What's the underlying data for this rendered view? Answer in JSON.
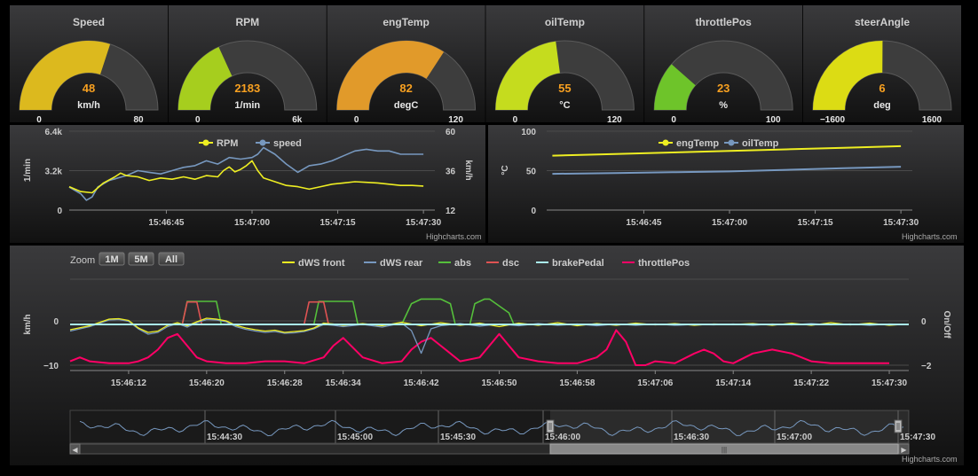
{
  "credit": "Highcharts.com",
  "colors": {
    "yellow": "#eeee22",
    "blue": "#7798bf",
    "green": "#55bf3b",
    "red": "#df5353",
    "light_cyan": "#aaeeee",
    "pink": "#ff0066",
    "gauge_bg": "#3a3a3a",
    "value_text": "#f7a020"
  },
  "gauges": [
    {
      "title": "Speed",
      "value_label": "48",
      "unit": "km/h",
      "min": 0,
      "max": 80,
      "value": 48,
      "min_label": "0",
      "max_label": "80",
      "color": "#dcb91e"
    },
    {
      "title": "RPM",
      "value_label": "2183",
      "unit": "1/min",
      "min": 0,
      "max": 6000,
      "value": 2183,
      "min_label": "0",
      "max_label": "6k",
      "color": "#a6ce1e"
    },
    {
      "title": "engTemp",
      "value_label": "82",
      "unit": "degC",
      "min": 0,
      "max": 120,
      "value": 82,
      "min_label": "0",
      "max_label": "120",
      "color": "#e19a2a"
    },
    {
      "title": "oilTemp",
      "value_label": "55",
      "unit": "°C",
      "min": 0,
      "max": 120,
      "value": 55,
      "min_label": "0",
      "max_label": "120",
      "color": "#c5dc1e"
    },
    {
      "title": "throttlePos",
      "value_label": "23",
      "unit": "%",
      "min": 0,
      "max": 100,
      "value": 23,
      "min_label": "0",
      "max_label": "100",
      "color": "#6ec42a"
    },
    {
      "title": "steerAngle",
      "value_label": "6",
      "unit": "deg",
      "min": -1600,
      "max": 1600,
      "value": 6,
      "min_label": "−1600",
      "max_label": "1600",
      "color": "#dcdc14"
    }
  ],
  "chart_data": [
    {
      "type": "line",
      "x_ticks": [
        "15:46:45",
        "15:47:00",
        "15:47:15",
        "15:47:30"
      ],
      "x_tick_seconds": [
        45,
        60,
        75,
        90
      ],
      "xlim": [
        28,
        92
      ],
      "y_left": {
        "label": "1/min",
        "ticks": [
          "0",
          "3.2k",
          "6.4k"
        ],
        "ylim": [
          0,
          6400
        ]
      },
      "y_right": {
        "label": "km/h",
        "ticks": [
          "12",
          "36",
          "60"
        ],
        "ylim": [
          12,
          60
        ]
      },
      "legend": [
        "RPM",
        "speed"
      ],
      "series": [
        {
          "name": "RPM",
          "axis": "left",
          "color": "#eeee22",
          "x": [
            28,
            30,
            32,
            34,
            36,
            37,
            38,
            40,
            42,
            44,
            46,
            48,
            50,
            52,
            54,
            55,
            56,
            57,
            58,
            59,
            60,
            61,
            62,
            64,
            66,
            68,
            70,
            72,
            74,
            76,
            78,
            80,
            82,
            84,
            86,
            88,
            90
          ],
          "y": [
            1900,
            1500,
            1400,
            2200,
            2700,
            3000,
            2800,
            2700,
            2400,
            2600,
            2500,
            2700,
            2500,
            2800,
            2700,
            3200,
            3500,
            3100,
            3300,
            3600,
            4000,
            3200,
            2600,
            2300,
            2000,
            1900,
            1700,
            1900,
            2100,
            2200,
            2300,
            2250,
            2200,
            2100,
            2000,
            2000,
            1950
          ]
        },
        {
          "name": "speed",
          "axis": "right",
          "color": "#7798bf",
          "x": [
            28,
            29,
            30,
            31,
            32,
            33,
            34,
            35,
            36,
            37,
            38,
            40,
            42,
            44,
            46,
            48,
            50,
            52,
            54,
            56,
            58,
            60,
            61,
            62,
            64,
            66,
            68,
            70,
            72,
            74,
            76,
            78,
            80,
            82,
            84,
            86,
            88,
            90
          ],
          "y": [
            26,
            24,
            22,
            18,
            20,
            26,
            28,
            30,
            31,
            32,
            33,
            36,
            35,
            34,
            36,
            38,
            39,
            42,
            40,
            44,
            43,
            44,
            46,
            50,
            46,
            40,
            35,
            39,
            40,
            42,
            45,
            48,
            49,
            48,
            48,
            46,
            46,
            46
          ]
        }
      ]
    },
    {
      "type": "line",
      "x_ticks": [
        "15:46:45",
        "15:47:00",
        "15:47:15",
        "15:47:30"
      ],
      "x_tick_seconds": [
        45,
        60,
        75,
        90
      ],
      "xlim": [
        28,
        92
      ],
      "y_left": {
        "label": "°C",
        "ticks": [
          "0",
          "50",
          "100"
        ],
        "ylim": [
          0,
          100
        ]
      },
      "legend": [
        "engTemp",
        "oilTemp"
      ],
      "series": [
        {
          "name": "engTemp",
          "color": "#eeee22",
          "x": [
            29,
            40,
            50,
            60,
            70,
            80,
            90
          ],
          "y": [
            69,
            71,
            73,
            75,
            77,
            79,
            81
          ]
        },
        {
          "name": "oilTemp",
          "color": "#7798bf",
          "x": [
            29,
            40,
            50,
            60,
            70,
            80,
            90
          ],
          "y": [
            46,
            47,
            48,
            49,
            51,
            53,
            55
          ]
        }
      ]
    },
    {
      "type": "line",
      "zoom": {
        "label": "Zoom",
        "buttons": [
          "1M",
          "5M",
          "All"
        ]
      },
      "x_ticks": [
        "15:46:12",
        "15:46:20",
        "15:46:28",
        "15:46:34",
        "15:46:42",
        "15:46:50",
        "15:46:58",
        "15:47:06",
        "15:47:14",
        "15:47:22",
        "15:47:30"
      ],
      "x_tick_seconds": [
        12,
        20,
        28,
        34,
        42,
        50,
        58,
        66,
        74,
        82,
        90
      ],
      "xlim": [
        6,
        92
      ],
      "y_left": {
        "label": "km/h",
        "ticks": [
          "−10",
          "0"
        ]
      },
      "y_right": {
        "label": "On/Off",
        "ticks": [
          "−2",
          "0"
        ]
      },
      "legend": [
        "dWS front",
        "dWS rear",
        "abs",
        "dsc",
        "brakePedal",
        "throttlePos"
      ],
      "series": [
        {
          "name": "dWS front",
          "color": "#eeee22",
          "x": [
            6,
            8,
            10,
            11,
            12,
            13,
            14,
            15,
            16,
            17,
            18,
            19,
            20,
            21,
            22,
            23,
            24,
            25,
            26,
            27,
            28,
            29,
            30,
            31,
            32,
            33,
            34,
            36,
            38,
            40,
            42,
            44,
            46,
            48,
            50,
            52,
            54,
            56,
            58,
            60,
            62,
            64,
            66,
            68,
            70,
            72,
            74,
            76,
            78,
            80,
            82,
            84,
            86,
            88,
            90,
            92
          ],
          "y": [
            -1.2,
            -0.3,
            1.2,
            1.3,
            0.9,
            -0.8,
            -1.8,
            -1.5,
            -0.2,
            0.4,
            -0.3,
            0.6,
            1.4,
            1.2,
            0.8,
            -0.2,
            -0.8,
            -1.2,
            -1.5,
            -1.3,
            -1.8,
            -1.6,
            -1.4,
            -0.8,
            0.3,
            0.1,
            -0.2,
            0.2,
            -0.3,
            0.5,
            -0.3,
            0.4,
            -0.2,
            0.3,
            -0.5,
            0.3,
            -0.2,
            0.4,
            -0.3,
            0.2,
            -0.2,
            0.3,
            -0.1,
            0.2,
            -0.2,
            0.1,
            0.0,
            0.2,
            -0.2,
            0.3,
            -0.2,
            0.4,
            -0.1,
            0.3,
            -0.2,
            0.1
          ]
        },
        {
          "name": "dWS rear",
          "color": "#7798bf",
          "x": [
            6,
            8,
            10,
            11,
            12,
            13,
            14,
            15,
            16,
            17,
            18,
            19,
            20,
            21,
            22,
            23,
            24,
            25,
            26,
            27,
            28,
            29,
            30,
            31,
            32,
            33,
            34,
            36,
            38,
            40,
            41,
            42,
            43,
            44,
            46,
            48,
            50,
            52,
            54,
            56,
            58,
            60,
            62,
            64,
            66,
            68,
            70,
            72,
            74,
            76,
            78,
            80,
            82,
            84,
            86,
            88,
            90,
            92
          ],
          "y": [
            -1.5,
            -0.5,
            1.0,
            1.1,
            0.7,
            -1.0,
            -2.2,
            -1.8,
            -0.5,
            0.2,
            -0.6,
            0.4,
            1.1,
            1.0,
            0.6,
            -0.5,
            -1.1,
            -1.5,
            -1.8,
            -1.6,
            -2.0,
            -1.9,
            -1.6,
            -1.0,
            0.0,
            -0.2,
            -0.5,
            0.0,
            -0.6,
            0.3,
            -1.4,
            -6.5,
            -1.0,
            -0.3,
            0.2,
            -0.4,
            0.1,
            -0.3,
            0.2,
            -0.2,
            0.1,
            -0.3,
            0.1,
            -0.2,
            0.1,
            -0.2,
            0.0,
            -0.1,
            0.1,
            -0.2,
            0.1,
            -0.1,
            0.2,
            -0.1,
            0.1,
            -0.2,
            0.1,
            0.0
          ]
        },
        {
          "name": "abs",
          "color": "#55bf3b",
          "x": [
            6,
            17.5,
            18,
            21,
            21.5,
            30,
            31,
            31.5,
            35,
            35.5,
            40,
            41,
            42,
            44,
            45,
            45.5,
            47,
            47.5,
            48.5,
            49,
            51,
            51.5,
            92
          ],
          "y": [
            0,
            0,
            2,
            2,
            0,
            0,
            0,
            2,
            2,
            0,
            0,
            1.8,
            2.2,
            2.2,
            1.8,
            0,
            0,
            1.8,
            2.2,
            2.2,
            1.0,
            0,
            0
          ]
        },
        {
          "name": "dsc",
          "color": "#df5353",
          "x": [
            6,
            17.5,
            18,
            19,
            19.5,
            30,
            30.5,
            32,
            32.5,
            92
          ],
          "y": [
            0,
            0,
            2.2,
            2.2,
            0,
            0,
            2.2,
            2.2,
            0,
            0
          ]
        },
        {
          "name": "brakePedal",
          "color": "#aaeeee",
          "x": [
            6,
            92
          ],
          "y": [
            0,
            0
          ]
        },
        {
          "name": "throttlePos",
          "color": "#ff0066",
          "x": [
            6,
            7,
            8,
            10,
            12,
            13,
            14,
            15,
            16,
            17,
            18,
            19,
            20,
            22,
            24,
            26,
            28,
            30,
            32,
            33,
            34,
            36,
            38,
            40,
            41,
            42,
            43,
            44,
            46,
            48,
            49,
            50,
            51,
            52,
            54,
            56,
            58,
            60,
            61,
            62,
            63,
            64,
            65,
            66,
            68,
            70,
            71,
            72,
            73,
            74,
            76,
            78,
            80,
            82,
            84,
            86,
            88,
            90
          ],
          "y": [
            -9,
            -8,
            -9,
            -9.5,
            -9.5,
            -9,
            -8,
            -6,
            -3,
            -2,
            -5,
            -8,
            -9,
            -9.5,
            -9.5,
            -9,
            -9,
            -9.5,
            -8,
            -5,
            -3,
            -8,
            -9.5,
            -9,
            -6,
            -4,
            -3,
            -5,
            -9,
            -8,
            -5,
            -2,
            -5,
            -8,
            -9,
            -9.5,
            -9.5,
            -8,
            -6,
            -1,
            -4,
            -10,
            -10,
            -9,
            -9.5,
            -7,
            -6,
            -7,
            -9,
            -9.5,
            -7,
            -6,
            -7,
            -9,
            -9.5,
            -9.5,
            -9.5,
            -9.5
          ]
        }
      ]
    },
    {
      "type": "line",
      "name": "navigator",
      "x_ticks": [
        "15:44:30",
        "15:45:00",
        "15:45:30",
        "15:46:00",
        "15:46:30",
        "15:47:00",
        "15:47:30"
      ],
      "series": [
        {
          "name": "dWS rear",
          "color": "#7798bf"
        }
      ]
    }
  ]
}
